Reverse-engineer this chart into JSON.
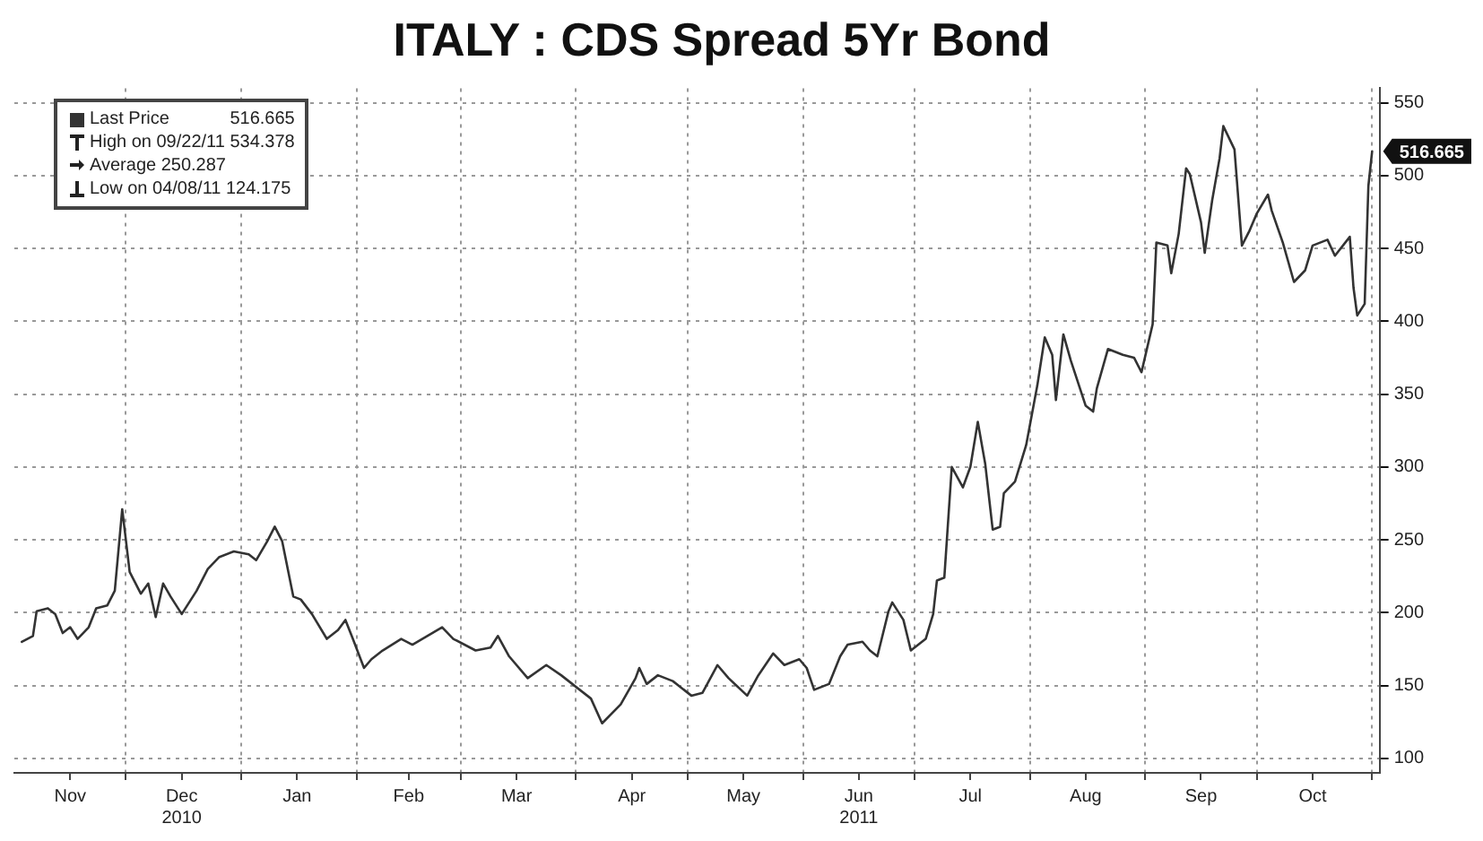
{
  "chart_data": {
    "type": "line",
    "title": "ITALY : CDS Spread 5Yr Bond",
    "x": [
      "2010-11-03",
      "2010-11-06",
      "2010-11-07",
      "2010-11-10",
      "2010-11-12",
      "2010-11-14",
      "2010-11-16",
      "2010-11-18",
      "2010-11-21",
      "2010-11-23",
      "2010-11-26",
      "2010-11-28",
      "2010-11-30",
      "2010-12-02",
      "2010-12-05",
      "2010-12-07",
      "2010-12-09",
      "2010-12-11",
      "2010-12-13",
      "2010-12-16",
      "2010-12-20",
      "2010-12-23",
      "2010-12-26",
      "2010-12-30",
      "2011-01-03",
      "2011-01-05",
      "2011-01-08",
      "2011-01-10",
      "2011-01-12",
      "2011-01-15",
      "2011-01-17",
      "2011-01-20",
      "2011-01-24",
      "2011-01-27",
      "2011-01-29",
      "2011-01-31",
      "2011-02-03",
      "2011-02-05",
      "2011-02-08",
      "2011-02-13",
      "2011-02-16",
      "2011-02-20",
      "2011-02-24",
      "2011-02-27",
      "2011-03-05",
      "2011-03-09",
      "2011-03-11",
      "2011-03-14",
      "2011-03-19",
      "2011-03-24",
      "2011-03-28",
      "2011-03-31",
      "2011-04-05",
      "2011-04-08",
      "2011-04-13",
      "2011-04-17",
      "2011-04-18",
      "2011-04-20",
      "2011-04-23",
      "2011-04-27",
      "2011-05-02",
      "2011-05-05",
      "2011-05-09",
      "2011-05-12",
      "2011-05-17",
      "2011-05-20",
      "2011-05-24",
      "2011-05-27",
      "2011-05-31",
      "2011-06-02",
      "2011-06-04",
      "2011-06-08",
      "2011-06-11",
      "2011-06-13",
      "2011-06-17",
      "2011-06-19",
      "2011-06-21",
      "2011-06-24",
      "2011-06-25",
      "2011-06-28",
      "2011-06-30",
      "2011-07-04",
      "2011-07-06",
      "2011-07-07",
      "2011-07-09",
      "2011-07-11",
      "2011-07-14",
      "2011-07-16",
      "2011-07-18",
      "2011-07-20",
      "2011-07-22",
      "2011-07-24",
      "2011-07-25",
      "2011-07-28",
      "2011-07-31",
      "2011-08-03",
      "2011-08-05",
      "2011-08-07",
      "2011-08-08",
      "2011-08-10",
      "2011-08-12",
      "2011-08-16",
      "2011-08-18",
      "2011-08-19",
      "2011-08-22",
      "2011-08-26",
      "2011-08-29",
      "2011-08-31",
      "2011-09-03",
      "2011-09-04",
      "2011-09-07",
      "2011-09-08",
      "2011-09-10",
      "2011-09-12",
      "2011-09-13",
      "2011-09-16",
      "2011-09-17",
      "2011-09-19",
      "2011-09-21",
      "2011-09-22",
      "2011-09-25",
      "2011-09-27",
      "2011-09-29",
      "2011-10-01",
      "2011-10-04",
      "2011-10-05",
      "2011-10-08",
      "2011-10-11",
      "2011-10-14",
      "2011-10-16",
      "2011-10-20",
      "2011-10-22",
      "2011-10-26",
      "2011-10-27",
      "2011-10-28",
      "2011-10-30",
      "2011-10-31",
      "2011-11-01"
    ],
    "series": [
      {
        "name": "Last Price",
        "color": "#333333",
        "values": [
          180,
          184,
          201,
          203,
          199,
          186,
          190,
          182,
          190,
          203,
          205,
          215,
          271,
          228,
          213,
          220,
          197,
          220,
          211,
          199,
          215,
          230,
          238,
          242,
          240,
          236,
          249,
          259,
          249,
          211,
          209,
          199,
          182,
          188,
          195,
          182,
          162,
          168,
          174,
          182,
          178,
          184,
          190,
          182,
          174,
          176,
          184,
          170,
          155,
          164,
          157,
          151,
          141,
          124,
          137,
          155,
          162,
          151,
          157,
          153,
          143,
          145,
          164,
          155,
          143,
          157,
          172,
          164,
          168,
          162,
          147,
          151,
          170,
          178,
          180,
          174,
          170,
          201,
          207,
          195,
          174,
          182,
          199,
          222,
          224,
          300,
          286,
          300,
          331,
          302,
          257,
          259,
          282,
          290,
          315,
          356,
          389,
          377,
          346,
          391,
          373,
          342,
          338,
          354,
          381,
          377,
          375,
          365,
          398,
          454,
          452,
          433,
          460,
          505,
          501,
          468,
          447,
          483,
          512,
          534,
          518,
          452,
          462,
          474,
          487,
          476,
          454,
          427,
          435,
          452,
          456,
          445,
          458,
          423,
          404,
          412,
          493,
          516.665
        ],
        "value_labels": [
          null,
          null,
          null,
          null,
          null,
          null,
          null,
          null,
          null,
          null,
          null,
          null,
          null,
          null,
          null,
          null,
          null,
          null,
          null,
          null,
          null,
          null,
          null,
          null,
          null,
          null,
          null,
          null,
          null,
          null,
          null,
          null,
          null,
          null,
          null,
          null,
          null,
          null,
          null,
          null,
          null,
          null,
          null,
          null,
          null,
          null,
          null,
          null,
          null,
          null,
          null,
          null,
          null,
          null,
          null,
          null,
          null,
          null,
          null,
          null,
          null,
          null,
          null,
          null,
          null,
          null,
          null,
          null,
          null,
          null,
          null,
          null,
          null,
          null,
          null,
          null,
          null,
          null,
          null,
          null,
          null,
          null,
          null,
          null,
          null,
          null,
          null,
          null,
          null,
          null,
          null,
          null,
          null,
          null,
          null,
          null,
          null,
          null,
          null,
          null,
          null,
          null,
          null,
          null,
          null,
          null,
          null,
          null,
          null,
          null,
          null,
          null,
          null,
          null,
          null,
          null,
          null,
          null,
          null,
          null,
          null,
          null,
          null,
          null,
          null,
          null,
          null,
          null,
          null,
          null,
          null,
          null,
          null,
          null,
          null,
          null,
          null,
          "516.665"
        ]
      }
    ],
    "xlim": [
      "2010-11-01",
      "2011-11-03"
    ],
    "xticks": [
      {
        "value": "2010-11-16",
        "label": "Nov"
      },
      {
        "value": "2010-12-01",
        "label": null
      },
      {
        "value": "2010-12-16",
        "label": "Dec\n2010"
      },
      {
        "value": "2011-01-01",
        "label": null
      },
      {
        "value": "2011-01-16",
        "label": "Jan"
      },
      {
        "value": "2011-02-01",
        "label": null
      },
      {
        "value": "2011-02-15",
        "label": "Feb"
      },
      {
        "value": "2011-03-01",
        "label": null
      },
      {
        "value": "2011-03-16",
        "label": "Mar"
      },
      {
        "value": "2011-04-01",
        "label": null
      },
      {
        "value": "2011-04-16",
        "label": "Apr"
      },
      {
        "value": "2011-05-01",
        "label": null
      },
      {
        "value": "2011-05-16",
        "label": "May"
      },
      {
        "value": "2011-06-01",
        "label": null
      },
      {
        "value": "2011-06-16",
        "label": "Jun\n2011"
      },
      {
        "value": "2011-07-01",
        "label": null
      },
      {
        "value": "2011-07-16",
        "label": "Jul"
      },
      {
        "value": "2011-08-01",
        "label": null
      },
      {
        "value": "2011-08-16",
        "label": "Aug"
      },
      {
        "value": "2011-09-01",
        "label": null
      },
      {
        "value": "2011-09-16",
        "label": "Sep"
      },
      {
        "value": "2011-10-01",
        "label": null
      },
      {
        "value": "2011-10-16",
        "label": "Oct"
      },
      {
        "value": "2011-11-01",
        "label": null
      }
    ],
    "ylim": [
      90,
      560
    ],
    "yticks": [
      100,
      150,
      200,
      250,
      300,
      350,
      400,
      450,
      500,
      550
    ],
    "grid": true,
    "legend": "top left",
    "line_style": "solid",
    "marker": "none",
    "annotations": [
      "High on 09/22/11 534.378",
      "Average 250.287",
      "Low on 04/08/11 124.175"
    ]
  }
}
